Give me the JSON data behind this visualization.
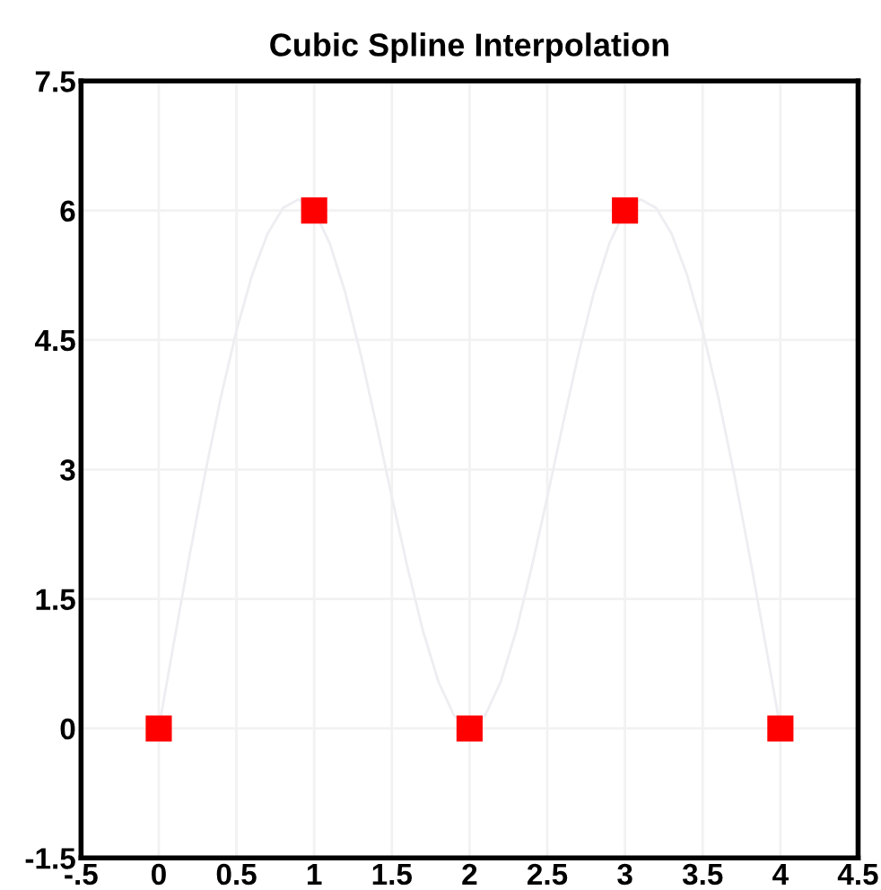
{
  "chart_data": {
    "type": "scatter",
    "title": "Cubic Spline Interpolation",
    "x": [
      0,
      1,
      2,
      3,
      4
    ],
    "series": [
      {
        "type": "line",
        "color": "#ededf2",
        "x": [
          0,
          0.1,
          0.2,
          0.3,
          0.4,
          0.5,
          0.6,
          0.7,
          0.8,
          0.9,
          1,
          1.1,
          1.2,
          1.3,
          1.4,
          1.5,
          1.6,
          1.7,
          1.8,
          1.9,
          2,
          2.1,
          2.2,
          2.3,
          2.4,
          2.5,
          2.6,
          2.7,
          2.8,
          2.9,
          3,
          3.1,
          3.2,
          3.3,
          3.4,
          3.5,
          3.6,
          3.7,
          3.8,
          3.9,
          4
        ],
        "values": [
          0,
          1.02,
          2.02,
          2.97,
          3.84,
          4.61,
          5.25,
          5.73,
          6.03,
          6.13,
          6,
          5.62,
          5.05,
          4.33,
          3.52,
          2.68,
          1.87,
          1.13,
          0.54,
          0.15,
          0,
          0.15,
          0.54,
          1.13,
          1.87,
          2.68,
          3.52,
          4.33,
          5.05,
          5.62,
          6,
          6.13,
          6.03,
          5.73,
          5.25,
          4.61,
          3.84,
          2.97,
          2.02,
          1.02,
          0
        ],
        "marker": "none"
      },
      {
        "color": "#ff0000",
        "values": [
          0,
          6,
          0,
          6,
          0
        ],
        "marker": "square"
      }
    ],
    "xlim": [
      -0.5,
      4.5
    ],
    "xticks": [
      {
        "value": -0.5,
        "label": "-.5"
      },
      0,
      0.5,
      1,
      1.5,
      2,
      2.5,
      3,
      3.5,
      4,
      4.5
    ],
    "ylim": [
      -1.5,
      7.5
    ],
    "yticks": [
      -1.5,
      0,
      1.5,
      3,
      4.5,
      6,
      7.5
    ],
    "grid": true,
    "legend": false
  }
}
